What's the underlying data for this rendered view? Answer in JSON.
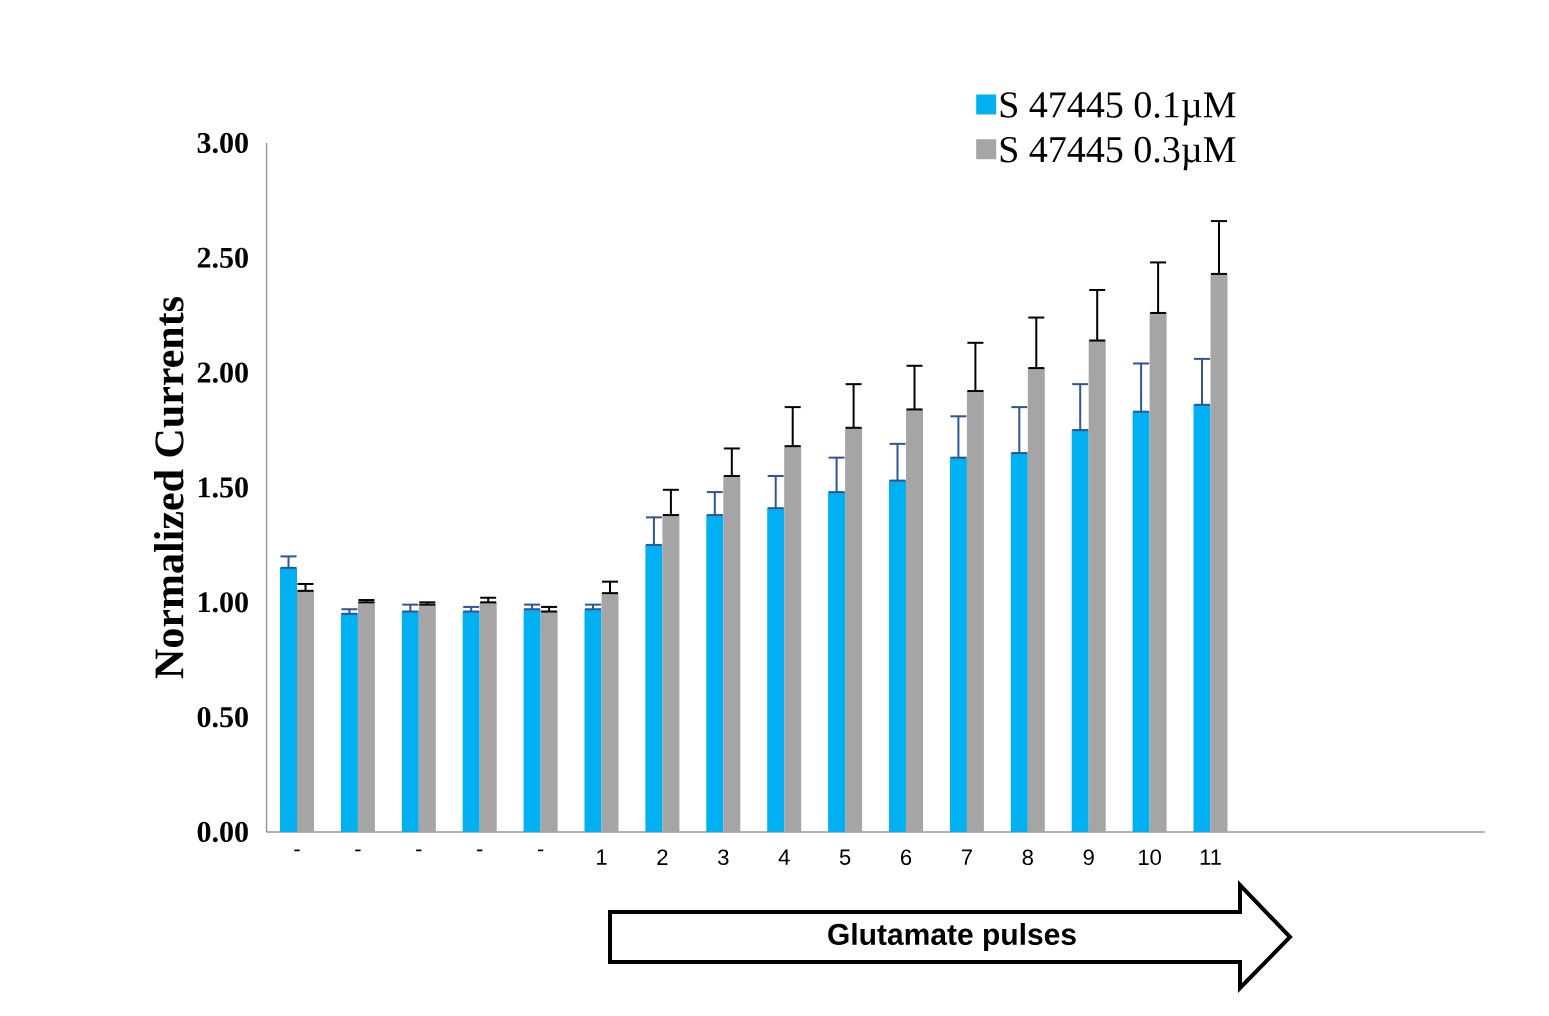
{
  "chart_data": {
    "type": "bar",
    "ylabel": "Normalized Currents",
    "categories": [
      "-",
      "-",
      "-",
      "-",
      "-",
      "1",
      "2",
      "3",
      "4",
      "5",
      "6",
      "7",
      "8",
      "9",
      "10",
      "11",
      null,
      null,
      null,
      null
    ],
    "series": [
      {
        "name": "S 47445 0.1µM",
        "color": "#00b0f0",
        "values": [
          1.15,
          0.95,
          0.96,
          0.96,
          0.97,
          0.97,
          1.25,
          1.38,
          1.41,
          1.48,
          1.53,
          1.63,
          1.65,
          1.75,
          1.83,
          1.86,
          null,
          null,
          null,
          null
        ],
        "errors": [
          [
            1.15,
            1.2
          ],
          [
            0.95,
            0.97
          ],
          [
            0.96,
            0.99
          ],
          [
            0.96,
            0.98
          ],
          [
            0.97,
            0.99
          ],
          [
            0.97,
            0.99
          ],
          [
            1.25,
            1.37
          ],
          [
            1.38,
            1.48
          ],
          [
            1.41,
            1.55
          ],
          [
            1.48,
            1.63
          ],
          [
            1.53,
            1.69
          ],
          [
            1.63,
            1.81
          ],
          [
            1.65,
            1.85
          ],
          [
            1.75,
            1.95
          ],
          [
            1.83,
            2.04
          ],
          [
            1.86,
            2.06
          ],
          null,
          null,
          null,
          null
        ]
      },
      {
        "name": "S 47445 0.3µM",
        "color": "#a5a5a5",
        "values": [
          1.05,
          1.0,
          0.99,
          1.0,
          0.96,
          1.04,
          1.38,
          1.55,
          1.68,
          1.76,
          1.84,
          1.92,
          2.02,
          2.14,
          2.26,
          2.43,
          null,
          null,
          null,
          null
        ],
        "errors": [
          [
            1.05,
            1.08
          ],
          [
            1.0,
            1.01
          ],
          [
            0.99,
            1.0
          ],
          [
            1.0,
            1.02
          ],
          [
            0.96,
            0.98
          ],
          [
            1.04,
            1.09
          ],
          [
            1.38,
            1.49
          ],
          [
            1.55,
            1.67
          ],
          [
            1.68,
            1.85
          ],
          [
            1.76,
            1.95
          ],
          [
            1.84,
            2.03
          ],
          [
            1.92,
            2.13
          ],
          [
            2.02,
            2.24
          ],
          [
            2.14,
            2.36
          ],
          [
            2.26,
            2.48
          ],
          [
            2.43,
            2.66
          ],
          null,
          null,
          null,
          null
        ]
      }
    ],
    "ylim": [
      0,
      3
    ],
    "yticks": [
      {
        "value": 0,
        "label": "0.00"
      },
      {
        "value": 0.5,
        "label": "0.50"
      },
      {
        "value": 1,
        "label": "1.00"
      },
      {
        "value": 1.5,
        "label": "1.50"
      },
      {
        "value": 2,
        "label": "2.00"
      },
      {
        "value": 2.5,
        "label": "2.50"
      },
      {
        "value": 3,
        "label": "3.00"
      }
    ],
    "grid": false,
    "legend": "top right",
    "annotations": [
      "Glutamate pulses"
    ]
  }
}
